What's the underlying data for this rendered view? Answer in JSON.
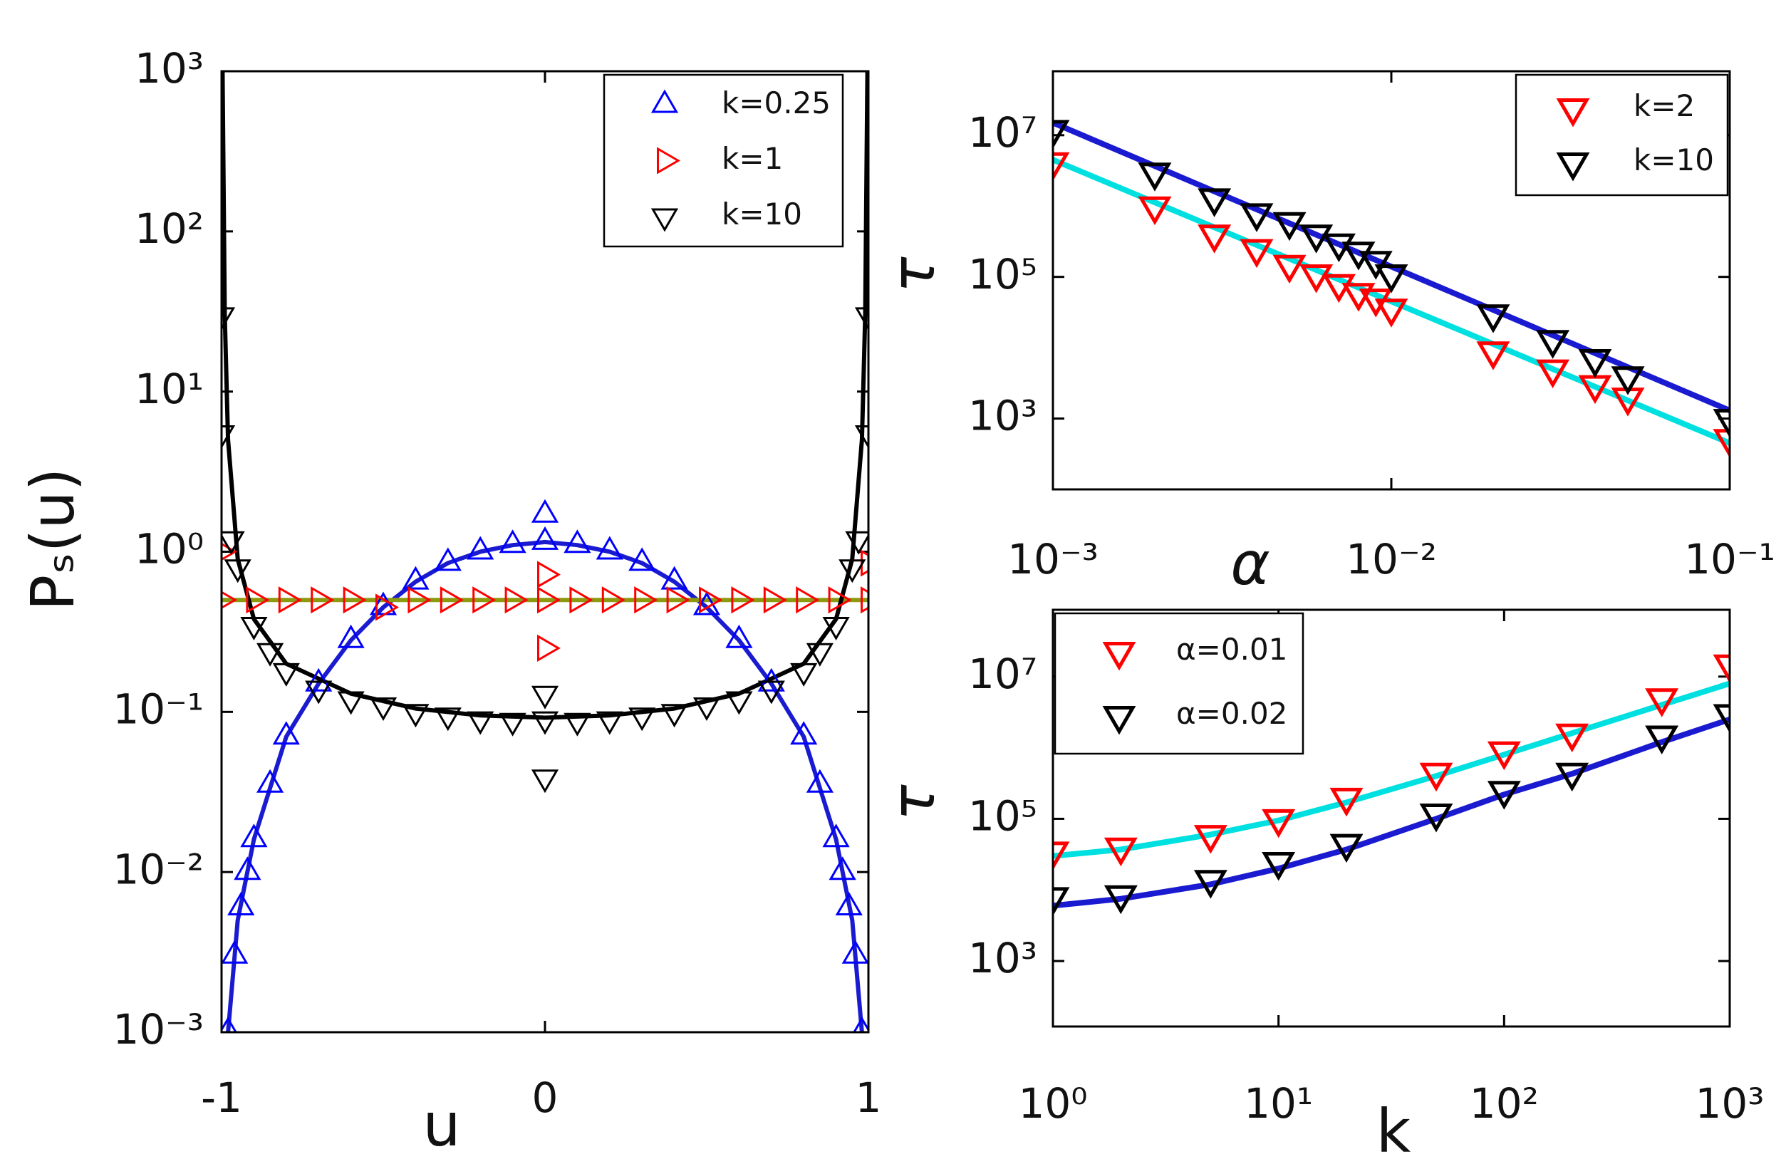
{
  "chart_data": [
    {
      "type": "scatter",
      "xlabel": "u",
      "ylabel": "Pₛ(u)",
      "xlim": [
        -1,
        1
      ],
      "ylim": [
        0.001,
        1000
      ],
      "yscale": "log",
      "xticks": [
        -1,
        0,
        1
      ],
      "yticks": [
        {
          "value": 0.001,
          "label": "10⁻³"
        },
        {
          "value": 0.01,
          "label": "10⁻²"
        },
        {
          "value": 0.1,
          "label": "10⁻¹"
        },
        {
          "value": 1,
          "label": "10⁰"
        },
        {
          "value": 10,
          "label": "10¹"
        },
        {
          "value": 100,
          "label": "10²"
        },
        {
          "value": 1000,
          "label": "10³"
        }
      ],
      "legend": "upper right",
      "series": [
        {
          "name": "k=0.25",
          "color": "#0000ff",
          "marker": "triangle-up",
          "x": [
            -0.98,
            -0.96,
            -0.94,
            -0.92,
            -0.9,
            -0.85,
            -0.8,
            -0.7,
            -0.6,
            -0.5,
            -0.4,
            -0.3,
            -0.2,
            -0.1,
            0,
            0,
            0.1,
            0.2,
            0.3,
            0.4,
            0.5,
            0.6,
            0.7,
            0.8,
            0.85,
            0.9,
            0.92,
            0.94,
            0.96,
            0.98
          ],
          "values": [
            0.001,
            0.003,
            0.006,
            0.01,
            0.016,
            0.035,
            0.07,
            0.15,
            0.28,
            0.45,
            0.65,
            0.85,
            1.0,
            1.1,
            1.15,
            1.7,
            1.1,
            1.0,
            0.85,
            0.65,
            0.45,
            0.28,
            0.15,
            0.07,
            0.035,
            0.016,
            0.01,
            0.006,
            0.003,
            0.001
          ]
        },
        {
          "name": "k=1",
          "color": "#ff0000",
          "marker": "triangle-right",
          "x": [
            -1,
            -1,
            -0.9,
            -0.8,
            -0.7,
            -0.6,
            -0.5,
            -0.4,
            -0.3,
            -0.2,
            -0.1,
            0,
            0,
            0,
            0.1,
            0.2,
            0.3,
            0.4,
            0.5,
            0.6,
            0.7,
            0.8,
            0.9,
            1,
            1
          ],
          "values": [
            1.0,
            0.5,
            0.5,
            0.5,
            0.5,
            0.5,
            0.45,
            0.5,
            0.5,
            0.5,
            0.5,
            0.5,
            0.72,
            0.25,
            0.5,
            0.5,
            0.5,
            0.5,
            0.5,
            0.5,
            0.5,
            0.5,
            0.5,
            0.85,
            0.5
          ]
        },
        {
          "name": "k=10",
          "color": "#000000",
          "marker": "triangle-down",
          "x": [
            -1,
            -1,
            -0.97,
            -0.95,
            -0.9,
            -0.85,
            -0.8,
            -0.7,
            -0.6,
            -0.5,
            -0.4,
            -0.3,
            -0.2,
            -0.1,
            0,
            0,
            0,
            0.1,
            0.2,
            0.3,
            0.4,
            0.5,
            0.6,
            0.7,
            0.8,
            0.85,
            0.9,
            0.95,
            0.97,
            1,
            1
          ],
          "values": [
            30,
            5.5,
            1.2,
            0.8,
            0.35,
            0.24,
            0.18,
            0.14,
            0.12,
            0.11,
            0.1,
            0.095,
            0.09,
            0.088,
            0.09,
            0.13,
            0.039,
            0.088,
            0.09,
            0.095,
            0.1,
            0.11,
            0.12,
            0.14,
            0.18,
            0.24,
            0.35,
            0.8,
            1.2,
            5.5,
            30
          ]
        }
      ],
      "curves": [
        {
          "color": "#1a1ad0",
          "x": [
            -0.98,
            -0.95,
            -0.9,
            -0.8,
            -0.7,
            -0.6,
            -0.5,
            -0.4,
            -0.3,
            -0.2,
            -0.1,
            0,
            0.1,
            0.2,
            0.3,
            0.4,
            0.5,
            0.6,
            0.7,
            0.8,
            0.9,
            0.95,
            0.98
          ],
          "values": [
            0.001,
            0.005,
            0.016,
            0.07,
            0.15,
            0.28,
            0.45,
            0.65,
            0.85,
            1.0,
            1.1,
            1.15,
            1.1,
            1.0,
            0.85,
            0.65,
            0.45,
            0.28,
            0.15,
            0.07,
            0.016,
            0.005,
            0.001
          ]
        },
        {
          "color": "#8c9a10",
          "x": [
            -1,
            1
          ],
          "values": [
            0.5,
            0.5
          ]
        },
        {
          "color": "#000000",
          "x": [
            -0.997,
            -0.99,
            -0.98,
            -0.95,
            -0.9,
            -0.8,
            -0.6,
            -0.4,
            -0.2,
            0,
            0.2,
            0.4,
            0.6,
            0.8,
            0.9,
            0.95,
            0.98,
            0.99,
            0.997
          ],
          "values": [
            1000,
            30,
            5,
            0.9,
            0.38,
            0.2,
            0.13,
            0.105,
            0.095,
            0.092,
            0.095,
            0.105,
            0.13,
            0.2,
            0.38,
            0.9,
            5,
            30,
            1000
          ]
        }
      ]
    },
    {
      "type": "scatter",
      "xlabel": "α",
      "ylabel": "τ",
      "xlim": [
        0.001,
        0.1
      ],
      "ylim": [
        100,
        80000000
      ],
      "xscale": "log",
      "yscale": "log",
      "xticks": [
        {
          "value": 0.001,
          "label": "10⁻³"
        },
        {
          "value": 0.01,
          "label": "10⁻²"
        },
        {
          "value": 0.1,
          "label": "10⁻¹"
        }
      ],
      "yticks": [
        {
          "value": 1000,
          "label": "10³"
        },
        {
          "value": 100000,
          "label": "10⁵"
        },
        {
          "value": 10000000,
          "label": "10⁷"
        }
      ],
      "legend": "upper right",
      "series": [
        {
          "name": "k=2",
          "color": "#ff0000",
          "marker": "triangle-down",
          "x": [
            0.001,
            0.002,
            0.003,
            0.004,
            0.005,
            0.006,
            0.007,
            0.008,
            0.009,
            0.01,
            0.02,
            0.03,
            0.04,
            0.05,
            0.1
          ],
          "values": [
            4200000,
            1000000,
            400000,
            250000,
            150000,
            110000,
            80000,
            60000,
            50000,
            36000,
            9000,
            5000,
            3000,
            2000,
            520
          ]
        },
        {
          "name": "k=10",
          "color": "#000000",
          "marker": "triangle-down",
          "x": [
            0.001,
            0.002,
            0.003,
            0.004,
            0.005,
            0.006,
            0.007,
            0.008,
            0.009,
            0.01,
            0.02,
            0.03,
            0.04,
            0.05,
            0.1
          ],
          "values": [
            12000000,
            3000000,
            1300000,
            800000,
            600000,
            400000,
            300000,
            230000,
            170000,
            110000,
            30000,
            13000,
            7000,
            4000,
            1000
          ]
        }
      ],
      "curves": [
        {
          "color": "#00e0e0",
          "x": [
            0.001,
            0.1
          ],
          "values": [
            4500000,
            450
          ]
        },
        {
          "color": "#1a1ad0",
          "x": [
            0.001,
            0.1
          ],
          "values": [
            15000000,
            1300
          ]
        }
      ]
    },
    {
      "type": "scatter",
      "xlabel": "k",
      "ylabel": "τ",
      "xlim": [
        1,
        1000
      ],
      "ylim": [
        120,
        87000000
      ],
      "xscale": "log",
      "yscale": "log",
      "xticks": [
        {
          "value": 1,
          "label": "10⁰"
        },
        {
          "value": 10,
          "label": "10¹"
        },
        {
          "value": 100,
          "label": "10²"
        },
        {
          "value": 1000,
          "label": "10³"
        }
      ],
      "yticks": [
        {
          "value": 1000,
          "label": "10³"
        },
        {
          "value": 100000,
          "label": "10⁵"
        },
        {
          "value": 10000000,
          "label": "10⁷"
        }
      ],
      "legend": "upper left",
      "series": [
        {
          "name": "α=0.01",
          "color": "#ff0000",
          "marker": "triangle-down",
          "x": [
            1,
            2,
            5,
            10,
            20,
            50,
            100,
            200,
            500,
            1000
          ],
          "values": [
            35000,
            40000,
            60000,
            100000,
            200000,
            450000,
            900000,
            1600000,
            5000000,
            15000000
          ]
        },
        {
          "name": "α=0.02",
          "color": "#000000",
          "marker": "triangle-down",
          "x": [
            1,
            2,
            5,
            10,
            20,
            50,
            100,
            200,
            500,
            1000
          ],
          "values": [
            8000,
            8500,
            14000,
            25000,
            45000,
            120000,
            250000,
            450000,
            1500000,
            3000000
          ]
        }
      ],
      "curves": [
        {
          "color": "#00e0e0",
          "x": [
            1,
            2,
            5,
            10,
            20,
            50,
            100,
            200,
            500,
            1000
          ],
          "values": [
            30000,
            37000,
            60000,
            95000,
            170000,
            400000,
            800000,
            1600000,
            4000000,
            8000000
          ]
        },
        {
          "color": "#1a1ad0",
          "x": [
            1,
            2,
            5,
            10,
            20,
            50,
            100,
            200,
            500,
            1000
          ],
          "values": [
            6000,
            7500,
            12000,
            20000,
            37000,
            100000,
            220000,
            430000,
            1200000,
            2500000
          ]
        }
      ]
    }
  ]
}
